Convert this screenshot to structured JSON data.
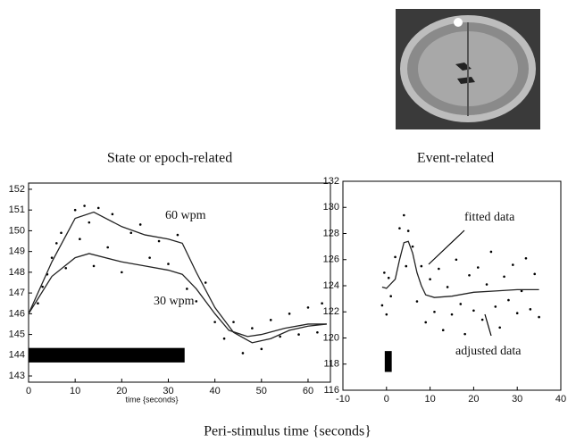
{
  "figure_caption": "Peri-stimulus time {seconds}",
  "chart_data": [
    {
      "type": "line",
      "title": "State or epoch-related",
      "xlabel": "time {seconds}",
      "xlim": [
        0,
        64.8
      ],
      "ylim": [
        142.7,
        152.3
      ],
      "xticks": [
        0,
        10,
        20,
        30,
        40,
        50,
        60
      ],
      "yticks": [
        143,
        144,
        145,
        146,
        147,
        148,
        149,
        150,
        151,
        152
      ],
      "annotations": [
        "60 wpm",
        "30 wpm"
      ],
      "stimulus": {
        "x": [
          0,
          33.5
        ],
        "y": [
          143.65,
          144.35
        ],
        "color": "#000000"
      },
      "series": [
        {
          "name": "60 wpm",
          "color": "#222222",
          "x": [
            0,
            5,
            10,
            14,
            20,
            25,
            30,
            33,
            36,
            40,
            44,
            48,
            52,
            56,
            60,
            64
          ],
          "values": [
            146,
            148.5,
            150.6,
            150.9,
            150.2,
            149.8,
            149.6,
            149.4,
            148,
            146.3,
            145.1,
            144.6,
            144.8,
            145.2,
            145.4,
            145.5
          ]
        },
        {
          "name": "30 wpm",
          "color": "#222222",
          "x": [
            0,
            5,
            10,
            13,
            20,
            25,
            30,
            33,
            36,
            40,
            43,
            47,
            50,
            55,
            60,
            64
          ],
          "values": [
            146,
            147.8,
            148.7,
            148.9,
            148.5,
            148.3,
            148.1,
            147.9,
            147.2,
            146,
            145.2,
            144.9,
            145,
            145.3,
            145.5,
            145.5
          ]
        }
      ],
      "points": {
        "color": "#000000",
        "x": [
          2,
          3,
          4,
          5,
          6,
          7,
          8,
          10,
          11,
          12,
          13,
          14,
          15,
          17,
          18,
          20,
          22,
          24,
          26,
          28,
          30,
          32,
          34,
          36,
          38,
          40,
          42,
          44,
          46,
          48,
          50,
          52,
          54,
          56,
          58,
          60,
          62,
          63
        ],
        "y": [
          146.5,
          147.3,
          147.9,
          148.7,
          149.4,
          149.9,
          148.2,
          151.0,
          149.6,
          151.2,
          150.4,
          148.3,
          151.1,
          149.2,
          150.8,
          148.0,
          149.9,
          150.3,
          148.7,
          149.5,
          148.4,
          149.8,
          147.2,
          146.6,
          147.5,
          145.6,
          144.8,
          145.6,
          144.1,
          145.3,
          144.3,
          145.7,
          144.9,
          146.0,
          145.0,
          146.3,
          145.1,
          146.5
        ]
      }
    },
    {
      "type": "line",
      "title": "Event-related",
      "xlim": [
        -10,
        40
      ],
      "ylim": [
        116,
        132
      ],
      "xticks": [
        -10,
        0,
        10,
        20,
        30,
        40
      ],
      "yticks": [
        116,
        118,
        120,
        122,
        124,
        126,
        128,
        130,
        132
      ],
      "annotations": [
        "fitted data",
        "adjusted data"
      ],
      "stimulus": {
        "x": [
          -0.4,
          1.2
        ],
        "y": [
          117.4,
          119
        ],
        "color": "#000000"
      },
      "series": [
        {
          "name": "fitted data",
          "color": "#222222",
          "x": [
            -1,
            0,
            2,
            3,
            4,
            5,
            6,
            7,
            8,
            9,
            11,
            15,
            20,
            25,
            30,
            35
          ],
          "values": [
            123.9,
            123.8,
            124.5,
            126,
            127.3,
            127.4,
            126.5,
            125,
            124,
            123.3,
            123.1,
            123.2,
            123.5,
            123.6,
            123.7,
            123.7
          ]
        }
      ],
      "points": {
        "color": "#000000",
        "x": [
          -1,
          -0.5,
          0,
          0.5,
          1,
          2,
          3,
          4,
          4.5,
          5,
          6,
          7,
          8,
          9,
          10,
          11,
          12,
          13,
          14,
          15,
          16,
          17,
          18,
          19,
          20,
          21,
          22,
          23,
          24,
          25,
          26,
          27,
          28,
          29,
          30,
          31,
          32,
          33,
          34,
          35
        ],
        "y": [
          122.5,
          125,
          121.8,
          124.6,
          123.2,
          126.2,
          128.4,
          129.4,
          125.5,
          128.2,
          127,
          122.8,
          125.5,
          121.2,
          124.5,
          122,
          125.3,
          120.6,
          123.9,
          121.8,
          126,
          122.6,
          120.3,
          124.8,
          122.1,
          125.4,
          121.4,
          124.1,
          126.6,
          122.4,
          120.8,
          124.7,
          122.9,
          125.6,
          121.9,
          123.6,
          126.1,
          122.2,
          124.9,
          121.6
        ]
      }
    }
  ]
}
